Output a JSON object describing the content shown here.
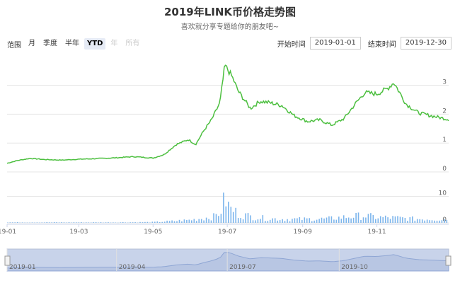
{
  "header": {
    "title": "2019年LINK币价格走势图",
    "subtitle": "喜欢就分享专题给你的朋友吧~"
  },
  "range_selector": {
    "label": "范围",
    "buttons": [
      {
        "label": "月",
        "state": "normal"
      },
      {
        "label": "季度",
        "state": "normal"
      },
      {
        "label": "半年",
        "state": "normal"
      },
      {
        "label": "YTD",
        "state": "active"
      },
      {
        "label": "年",
        "state": "disabled"
      },
      {
        "label": "所有",
        "state": "disabled"
      }
    ]
  },
  "date_range": {
    "start_label": "开始时间",
    "start_value": "2019-01-01",
    "end_label": "结束时间",
    "end_value": "2019-12-30"
  },
  "colors": {
    "price_line": "#4cbf3f",
    "volume_bar": "#7cb5ec",
    "navigator_fill": "#c8d3ea",
    "grid": "#e6e6e6"
  },
  "chart_data": {
    "type": "line",
    "title": "2019年LINK币价格走势图",
    "subtitle": "喜欢就分享专题给你的朋友吧~",
    "x_ticks": [
      "19-01",
      "19-03",
      "19-05",
      "19-07",
      "19-09",
      "19-11"
    ],
    "navigator_ticks": [
      "2019-01",
      "2019-04",
      "2019-07",
      "2019-10"
    ],
    "price_axis": {
      "ticks": [
        "0",
        "1",
        "2",
        "3"
      ],
      "ylim": [
        0,
        3.8
      ]
    },
    "volume_axis": {
      "ticks": [
        "0",
        "10"
      ],
      "ylim": [
        0,
        12
      ]
    },
    "series": [
      {
        "kind": "price",
        "points": [
          [
            "2019-01-01",
            0.3
          ],
          [
            "2019-01-10",
            0.4
          ],
          [
            "2019-01-20",
            0.47
          ],
          [
            "2019-02-01",
            0.43
          ],
          [
            "2019-02-15",
            0.41
          ],
          [
            "2019-03-01",
            0.44
          ],
          [
            "2019-03-15",
            0.46
          ],
          [
            "2019-04-01",
            0.49
          ],
          [
            "2019-04-15",
            0.53
          ],
          [
            "2019-05-01",
            0.48
          ],
          [
            "2019-05-10",
            0.6
          ],
          [
            "2019-05-20",
            0.95
          ],
          [
            "2019-05-30",
            1.12
          ],
          [
            "2019-06-05",
            0.95
          ],
          [
            "2019-06-12",
            1.45
          ],
          [
            "2019-06-18",
            1.8
          ],
          [
            "2019-06-25",
            2.4
          ],
          [
            "2019-06-29",
            3.7
          ],
          [
            "2019-07-05",
            3.3
          ],
          [
            "2019-07-10",
            2.8
          ],
          [
            "2019-07-15",
            2.5
          ],
          [
            "2019-07-20",
            2.2
          ],
          [
            "2019-07-28",
            2.45
          ],
          [
            "2019-08-05",
            2.4
          ],
          [
            "2019-08-15",
            2.3
          ],
          [
            "2019-08-25",
            1.95
          ],
          [
            "2019-09-05",
            1.75
          ],
          [
            "2019-09-15",
            1.8
          ],
          [
            "2019-09-25",
            1.62
          ],
          [
            "2019-10-05",
            1.85
          ],
          [
            "2019-10-15",
            2.4
          ],
          [
            "2019-10-22",
            2.75
          ],
          [
            "2019-11-01",
            2.7
          ],
          [
            "2019-11-10",
            2.9
          ],
          [
            "2019-11-15",
            3.1
          ],
          [
            "2019-11-25",
            2.35
          ],
          [
            "2019-12-05",
            2.05
          ],
          [
            "2019-12-15",
            1.95
          ],
          [
            "2019-12-30",
            1.82
          ]
        ]
      },
      {
        "kind": "volume",
        "points": [
          [
            "2019-01-01",
            0.2
          ],
          [
            "2019-02-01",
            0.2
          ],
          [
            "2019-03-01",
            0.2
          ],
          [
            "2019-04-01",
            0.2
          ],
          [
            "2019-05-01",
            0.3
          ],
          [
            "2019-05-20",
            0.8
          ],
          [
            "2019-06-01",
            1.2
          ],
          [
            "2019-06-10",
            1.8
          ],
          [
            "2019-06-20",
            2.5
          ],
          [
            "2019-06-25",
            4.5
          ],
          [
            "2019-06-29",
            10.0
          ],
          [
            "2019-07-02",
            6.0
          ],
          [
            "2019-07-10",
            3.5
          ],
          [
            "2019-07-20",
            2.5
          ],
          [
            "2019-08-01",
            1.8
          ],
          [
            "2019-08-15",
            1.5
          ],
          [
            "2019-09-01",
            1.5
          ],
          [
            "2019-09-20",
            1.6
          ],
          [
            "2019-10-10",
            2.5
          ],
          [
            "2019-10-20",
            2.8
          ],
          [
            "2019-11-01",
            2.2
          ],
          [
            "2019-11-15",
            2.0
          ],
          [
            "2019-12-01",
            1.6
          ],
          [
            "2019-12-30",
            1.4
          ]
        ]
      }
    ]
  }
}
